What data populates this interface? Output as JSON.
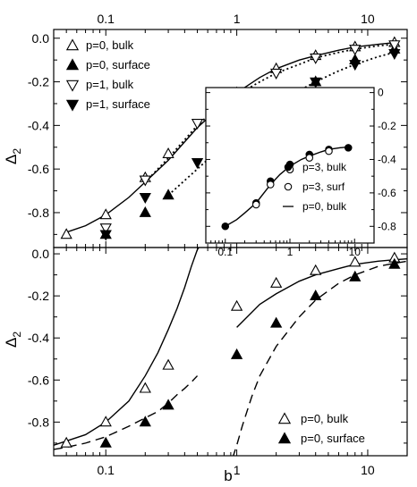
{
  "chart_data": [
    {
      "id": "top",
      "type": "scatter",
      "xscale": "log",
      "xlim": [
        0.04,
        20
      ],
      "ylim": [
        -0.96,
        0.04
      ],
      "xticks": [
        {
          "v": 0.1,
          "label": "0.1"
        },
        {
          "v": 1,
          "label": "1"
        },
        {
          "v": 10,
          "label": "10"
        }
      ],
      "yticks": [
        {
          "v": 0,
          "label": "0.0"
        },
        {
          "v": -0.2,
          "label": "-0.2"
        },
        {
          "v": -0.4,
          "label": "-0.4"
        },
        {
          "v": -0.6,
          "label": "-0.6"
        },
        {
          "v": -0.8,
          "label": "-0.8"
        }
      ],
      "ylabel": "Δ",
      "ylabel_sub": "2",
      "legend": "top-left",
      "series": [
        {
          "name": "p=0, bulk",
          "marker": "tri-up-open",
          "x": [
            0.05,
            0.1,
            0.2,
            0.3,
            1,
            2,
            4,
            8,
            16
          ],
          "y": [
            -0.9,
            -0.81,
            -0.64,
            -0.53,
            -0.25,
            -0.14,
            -0.08,
            -0.04,
            -0.02
          ]
        },
        {
          "name": "p=0, surface",
          "marker": "tri-up-filled",
          "x": [
            0.1,
            0.2,
            0.3,
            1,
            2,
            4,
            8,
            16
          ],
          "y": [
            -0.9,
            -0.8,
            -0.72,
            -0.49,
            -0.33,
            -0.2,
            -0.1,
            -0.05
          ]
        },
        {
          "name": "p=1, bulk",
          "marker": "tri-down-open",
          "x": [
            0.1,
            0.2,
            0.5,
            1,
            2,
            4,
            8,
            16
          ],
          "y": [
            -0.87,
            -0.65,
            -0.39,
            -0.26,
            -0.16,
            -0.09,
            -0.05,
            -0.03
          ]
        },
        {
          "name": "p=1, surface",
          "marker": "tri-down-filled",
          "x": [
            0.1,
            0.2,
            0.5,
            1,
            2,
            4,
            8,
            16
          ],
          "y": [
            -0.9,
            -0.73,
            -0.57,
            -0.44,
            -0.31,
            -0.2,
            -0.12,
            -0.07
          ]
        }
      ],
      "curves": [
        {
          "style": "solid",
          "x": [
            0.05,
            0.07,
            0.1,
            0.15,
            0.2,
            0.3,
            0.5,
            0.7,
            1,
            1.5,
            2,
            3,
            4,
            6,
            8,
            12,
            16
          ],
          "y": [
            -0.89,
            -0.86,
            -0.81,
            -0.73,
            -0.66,
            -0.56,
            -0.41,
            -0.33,
            -0.25,
            -0.18,
            -0.14,
            -0.1,
            -0.08,
            -0.055,
            -0.04,
            -0.028,
            -0.02
          ]
        },
        {
          "style": "dotted",
          "x": [
            0.2,
            0.3,
            0.5,
            0.7,
            1,
            1.5,
            2,
            3,
            4,
            6,
            8,
            12,
            16
          ],
          "y": [
            -0.66,
            -0.55,
            -0.4,
            -0.32,
            -0.26,
            -0.2,
            -0.16,
            -0.12,
            -0.09,
            -0.065,
            -0.05,
            -0.035,
            -0.028
          ]
        },
        {
          "style": "dotted",
          "x": [
            0.3,
            0.5,
            0.7,
            1,
            1.5,
            2,
            3,
            4,
            6,
            8,
            12,
            16
          ],
          "y": [
            -0.72,
            -0.6,
            -0.52,
            -0.45,
            -0.37,
            -0.31,
            -0.24,
            -0.2,
            -0.15,
            -0.12,
            -0.085,
            -0.065
          ]
        }
      ]
    },
    {
      "id": "inset",
      "type": "scatter",
      "xscale": "log",
      "xlim": [
        0.05,
        20
      ],
      "ylim": [
        -0.9,
        0.03
      ],
      "xticks": [
        {
          "v": 0.1,
          "label": "0.1"
        },
        {
          "v": 1,
          "label": "1"
        },
        {
          "v": 10,
          "label": "10"
        }
      ],
      "yticks": [
        {
          "v": 0,
          "label": "0"
        },
        {
          "v": -0.2,
          "label": "-0.2"
        },
        {
          "v": -0.4,
          "label": "-0.4"
        },
        {
          "v": -0.6,
          "label": "-0.6"
        },
        {
          "v": -0.8,
          "label": "-0.8"
        }
      ],
      "legend": "bottom-right",
      "series": [
        {
          "name": "p=3, bulk",
          "marker": "circle-filled",
          "x": [
            0.1,
            0.3,
            0.5,
            1,
            2,
            4,
            8
          ],
          "y": [
            -0.8,
            -0.66,
            -0.53,
            -0.43,
            -0.37,
            -0.34,
            -0.33
          ]
        },
        {
          "name": "p=3, surf",
          "marker": "circle-open",
          "x": [
            0.3,
            0.5,
            1,
            2,
            4
          ],
          "y": [
            -0.67,
            -0.55,
            -0.46,
            -0.39,
            -0.35
          ]
        },
        {
          "name": "p=0, bulk",
          "marker": "line-dash"
        }
      ],
      "curves": [
        {
          "style": "solid",
          "x": [
            0.1,
            0.15,
            0.2,
            0.3,
            0.5,
            0.7,
            1,
            1.5,
            2,
            3,
            4,
            6,
            8
          ],
          "y": [
            -0.8,
            -0.76,
            -0.72,
            -0.66,
            -0.55,
            -0.49,
            -0.44,
            -0.4,
            -0.38,
            -0.355,
            -0.34,
            -0.33,
            -0.325
          ]
        }
      ]
    },
    {
      "id": "bottom",
      "type": "scatter",
      "xscale": "log",
      "xlim": [
        0.04,
        20
      ],
      "ylim": [
        -0.96,
        0.03
      ],
      "xticks": [
        {
          "v": 0.1,
          "label": "0.1"
        },
        {
          "v": 1,
          "label": "1"
        },
        {
          "v": 10,
          "label": "10"
        }
      ],
      "yticks": [
        {
          "v": 0,
          "label": "0.0"
        },
        {
          "v": -0.2,
          "label": "-0.2"
        },
        {
          "v": -0.4,
          "label": "-0.4"
        },
        {
          "v": -0.6,
          "label": "-0.6"
        },
        {
          "v": -0.8,
          "label": "-0.8"
        }
      ],
      "xlabel": "b",
      "ylabel": "Δ",
      "ylabel_sub": "2",
      "legend": "bottom-right",
      "series": [
        {
          "name": "p=0, bulk",
          "marker": "tri-up-open",
          "x": [
            0.05,
            0.1,
            0.2,
            0.3,
            1,
            2,
            4,
            8,
            16
          ],
          "y": [
            -0.9,
            -0.8,
            -0.64,
            -0.53,
            -0.25,
            -0.14,
            -0.08,
            -0.04,
            -0.02
          ]
        },
        {
          "name": "p=0, surface",
          "marker": "tri-up-filled",
          "x": [
            0.1,
            0.2,
            0.3,
            1,
            2,
            4,
            8,
            16
          ],
          "y": [
            -0.9,
            -0.8,
            -0.72,
            -0.48,
            -0.33,
            -0.2,
            -0.11,
            -0.05
          ]
        }
      ],
      "curves": [
        {
          "style": "solid",
          "x": [
            0.04,
            0.05,
            0.07,
            0.1,
            0.15,
            0.2,
            0.25,
            0.3,
            0.35,
            0.4,
            0.45,
            0.5,
            0.54
          ],
          "y": [
            -0.91,
            -0.89,
            -0.86,
            -0.8,
            -0.7,
            -0.58,
            -0.47,
            -0.36,
            -0.26,
            -0.16,
            -0.06,
            0.02,
            0.05
          ]
        },
        {
          "style": "dashed",
          "x": [
            0.04,
            0.05,
            0.07,
            0.1,
            0.15,
            0.2,
            0.25,
            0.3,
            0.35,
            0.4,
            0.45,
            0.5
          ],
          "y": [
            -0.93,
            -0.92,
            -0.9,
            -0.87,
            -0.82,
            -0.78,
            -0.75,
            -0.71,
            -0.67,
            -0.64,
            -0.61,
            -0.58
          ]
        },
        {
          "style": "solid",
          "x": [
            1,
            1.5,
            2,
            3,
            4,
            6,
            8,
            12,
            16,
            20
          ],
          "y": [
            -0.35,
            -0.24,
            -0.19,
            -0.13,
            -0.1,
            -0.07,
            -0.05,
            -0.035,
            -0.028,
            -0.024
          ]
        },
        {
          "style": "dashed",
          "x": [
            0.93,
            1,
            1.1,
            1.3,
            1.5,
            2,
            3,
            4,
            6,
            8,
            12,
            16,
            20
          ],
          "y": [
            -0.97,
            -0.91,
            -0.82,
            -0.68,
            -0.58,
            -0.44,
            -0.3,
            -0.22,
            -0.14,
            -0.1,
            -0.06,
            -0.045,
            -0.035
          ]
        }
      ]
    }
  ]
}
